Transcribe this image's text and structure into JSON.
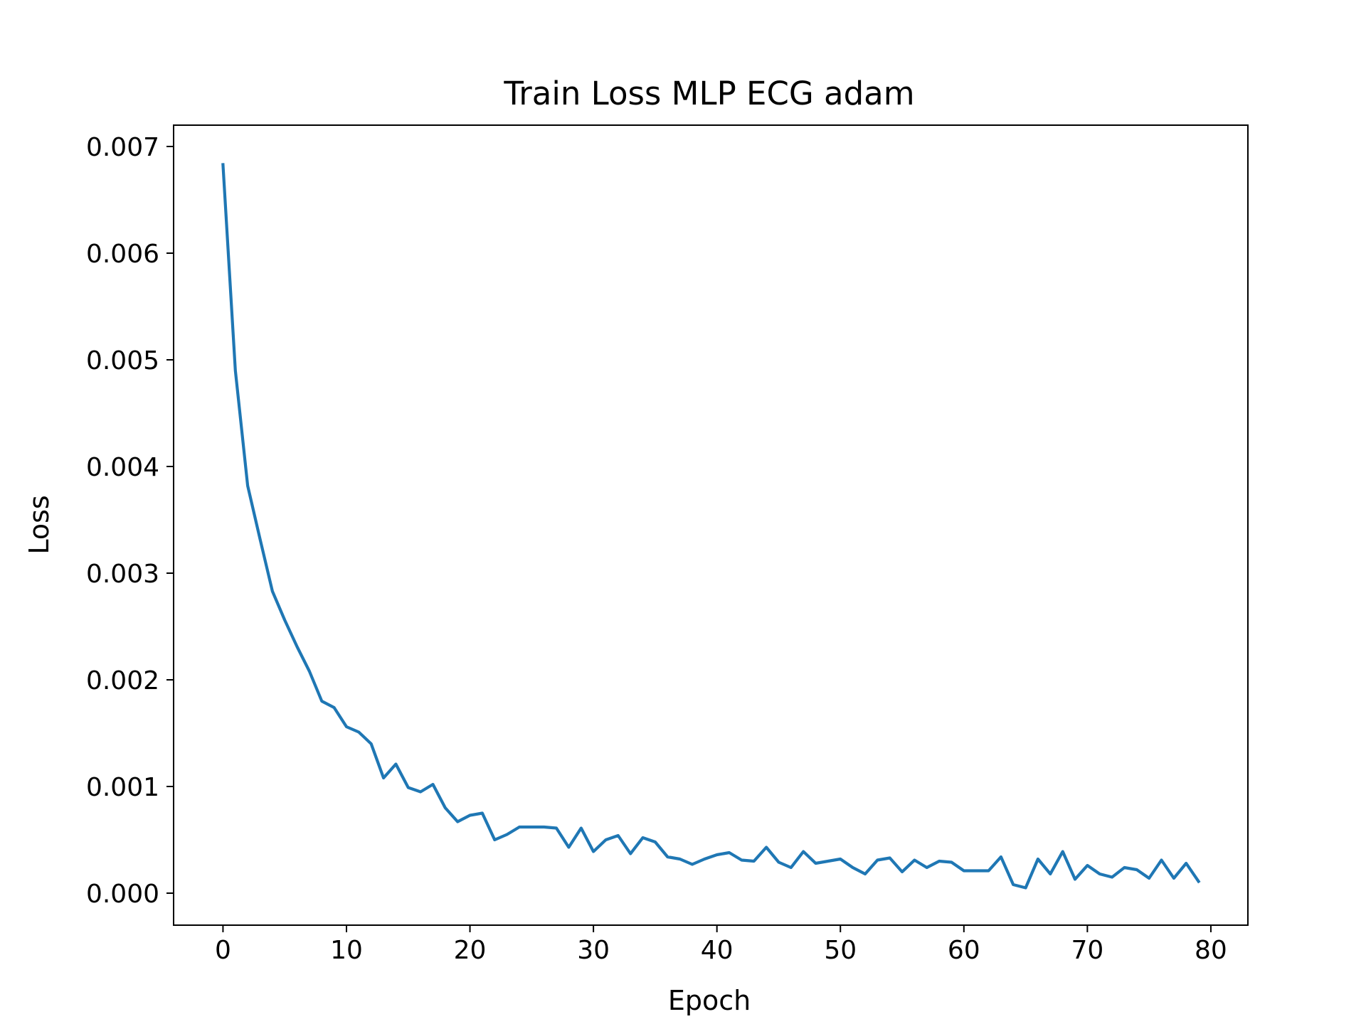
{
  "chart_data": {
    "type": "line",
    "title": "Train Loss MLP ECG adam",
    "xlabel": "Epoch",
    "ylabel": "Loss",
    "xlim": [
      -4,
      83
    ],
    "ylim": [
      -0.0003,
      0.0072
    ],
    "xticks": [
      0,
      10,
      20,
      30,
      40,
      50,
      60,
      70,
      80
    ],
    "xtick_labels": [
      "0",
      "10",
      "20",
      "30",
      "40",
      "50",
      "60",
      "70",
      "80"
    ],
    "yticks": [
      0.0,
      0.001,
      0.002,
      0.003,
      0.004,
      0.005,
      0.006,
      0.007
    ],
    "ytick_labels": [
      "0.000",
      "0.001",
      "0.002",
      "0.003",
      "0.004",
      "0.005",
      "0.006",
      "0.007"
    ],
    "grid": false,
    "legend": "none",
    "series": [
      {
        "color": "#1f77b4",
        "x": [
          0,
          1,
          2,
          3,
          4,
          5,
          6,
          7,
          8,
          9,
          10,
          11,
          12,
          13,
          14,
          15,
          16,
          17,
          18,
          19,
          20,
          21,
          22,
          23,
          24,
          25,
          26,
          27,
          28,
          29,
          30,
          31,
          32,
          33,
          34,
          35,
          36,
          37,
          38,
          39,
          40,
          41,
          42,
          43,
          44,
          45,
          46,
          47,
          48,
          49,
          50,
          51,
          52,
          53,
          54,
          55,
          56,
          57,
          58,
          59,
          60,
          61,
          62,
          63,
          64,
          65,
          66,
          67,
          68,
          69,
          70,
          71,
          72,
          73,
          74,
          75,
          76,
          77,
          78,
          79
        ],
        "y": [
          0.00683,
          0.0049,
          0.00382,
          0.00332,
          0.00283,
          0.00256,
          0.00231,
          0.00208,
          0.0018,
          0.00174,
          0.00156,
          0.00151,
          0.0014,
          0.00108,
          0.00121,
          0.00099,
          0.00095,
          0.00102,
          0.0008,
          0.00067,
          0.00073,
          0.00075,
          0.0005,
          0.00055,
          0.00062,
          0.00062,
          0.00062,
          0.00061,
          0.00043,
          0.00061,
          0.00039,
          0.0005,
          0.00054,
          0.00037,
          0.00052,
          0.00048,
          0.00034,
          0.00032,
          0.00027,
          0.00032,
          0.00036,
          0.00038,
          0.00031,
          0.0003,
          0.00043,
          0.00029,
          0.00024,
          0.00039,
          0.00028,
          0.0003,
          0.00032,
          0.00024,
          0.00018,
          0.00031,
          0.00033,
          0.0002,
          0.00031,
          0.00024,
          0.0003,
          0.00029,
          0.00021,
          0.00021,
          0.00021,
          0.00034,
          8e-05,
          5e-05,
          0.00032,
          0.00018,
          0.00039,
          0.00013,
          0.00026,
          0.00018,
          0.00015,
          0.00024,
          0.00022,
          0.00014,
          0.00031,
          0.00014,
          0.00028,
          0.00011
        ]
      }
    ]
  }
}
